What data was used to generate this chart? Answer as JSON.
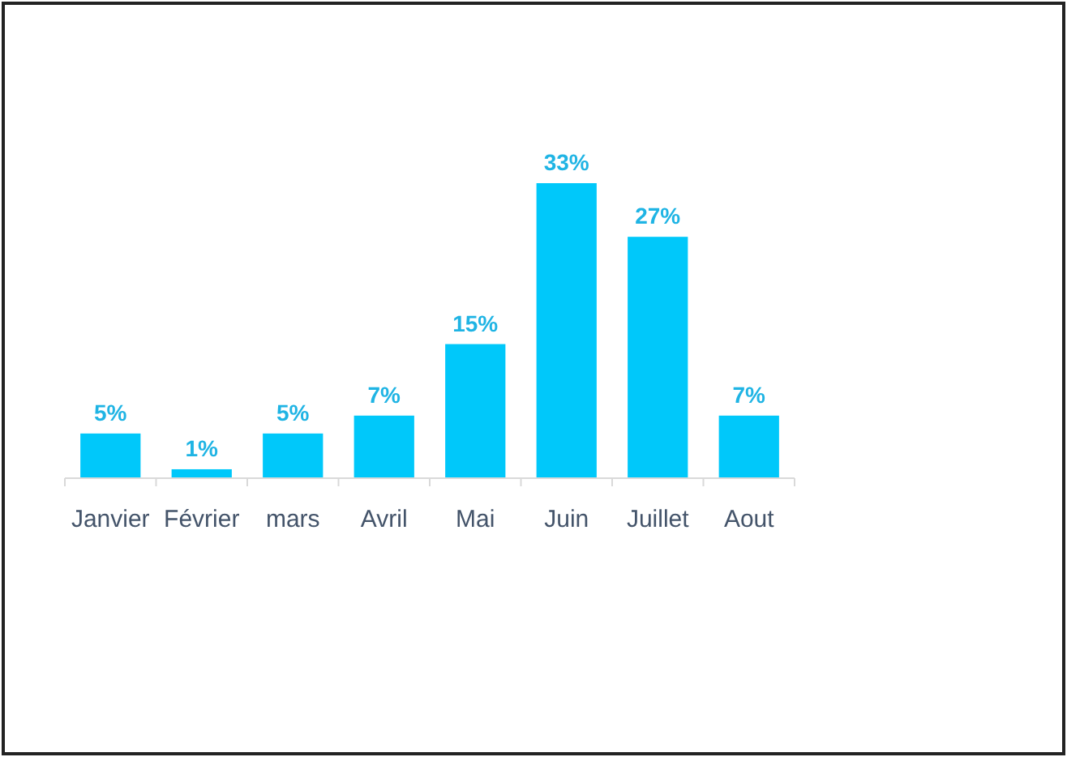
{
  "chart_data": {
    "type": "bar",
    "categories": [
      "Janvier",
      "Février",
      "mars",
      "Avril",
      "Mai",
      "Juin",
      "Juillet",
      "Aout"
    ],
    "values": [
      5,
      1,
      5,
      7,
      15,
      33,
      27,
      7
    ],
    "value_labels": [
      "5%",
      "1%",
      "5%",
      "7%",
      "15%",
      "33%",
      "27%",
      "7%"
    ],
    "color": "#00c8fa"
  }
}
